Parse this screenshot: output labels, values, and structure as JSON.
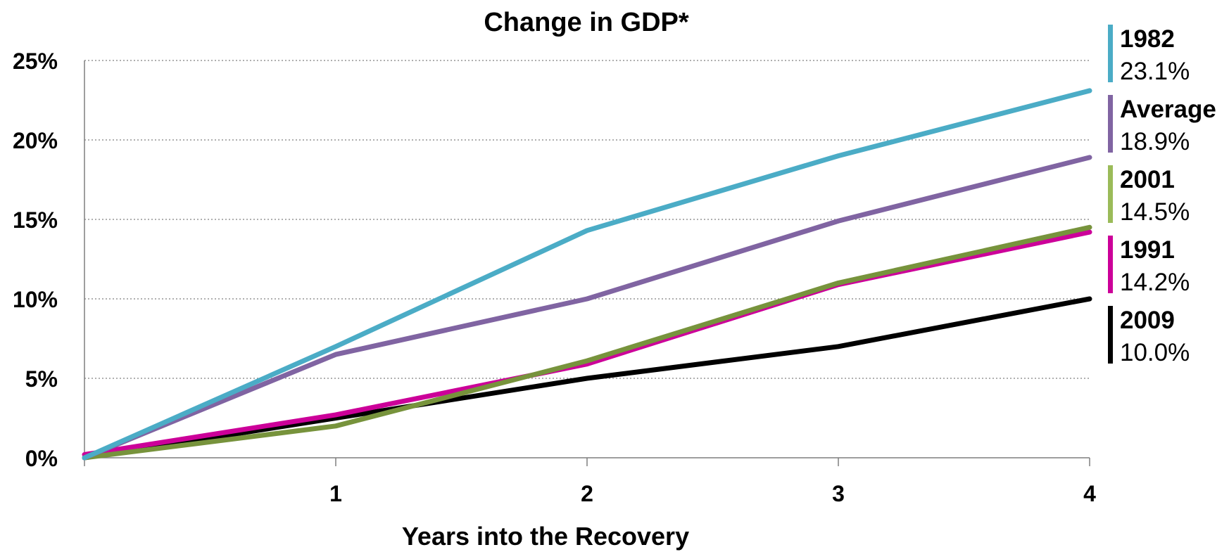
{
  "chart_data": {
    "type": "line",
    "title": "Change in GDP*",
    "xlabel": "Years into the Recovery",
    "ylabel": "",
    "x": [
      0,
      1,
      2,
      3,
      4
    ],
    "x_tick_labels": [
      "1",
      "2",
      "3",
      "4"
    ],
    "x_ticks": [
      1,
      2,
      3,
      4
    ],
    "xlim": [
      0,
      4
    ],
    "y_tick_labels": [
      "0%",
      "5%",
      "10%",
      "15%",
      "20%",
      "25%"
    ],
    "y_ticks": [
      0,
      5,
      10,
      15,
      20,
      25
    ],
    "ylim": [
      0,
      25
    ],
    "grid": "horizontal dotted",
    "legend_position": "right",
    "series": [
      {
        "name": "2009",
        "end_label": "10.0%",
        "color": "#000000",
        "values": [
          0,
          2.5,
          5.0,
          7.0,
          10.0
        ]
      },
      {
        "name": "1991",
        "end_label": "14.2%",
        "color": "#cc0099",
        "values": [
          0.2,
          2.7,
          5.9,
          10.9,
          14.2
        ]
      },
      {
        "name": "2001",
        "end_label": "14.5%",
        "color": "#77933c",
        "values": [
          0,
          2.0,
          6.1,
          11.0,
          14.5
        ]
      },
      {
        "name": "Average",
        "end_label": "18.9%",
        "color": "#8064a2",
        "values": [
          0,
          6.5,
          10.0,
          14.9,
          18.9
        ]
      },
      {
        "name": "1982",
        "end_label": "23.1%",
        "color": "#4bacc6",
        "values": [
          0,
          7.0,
          14.3,
          19.0,
          23.1
        ]
      }
    ],
    "legend_order": [
      "1982",
      "Average",
      "2001",
      "1991",
      "2009"
    ],
    "legend_colors": {
      "2001": "#9bbb59"
    }
  }
}
